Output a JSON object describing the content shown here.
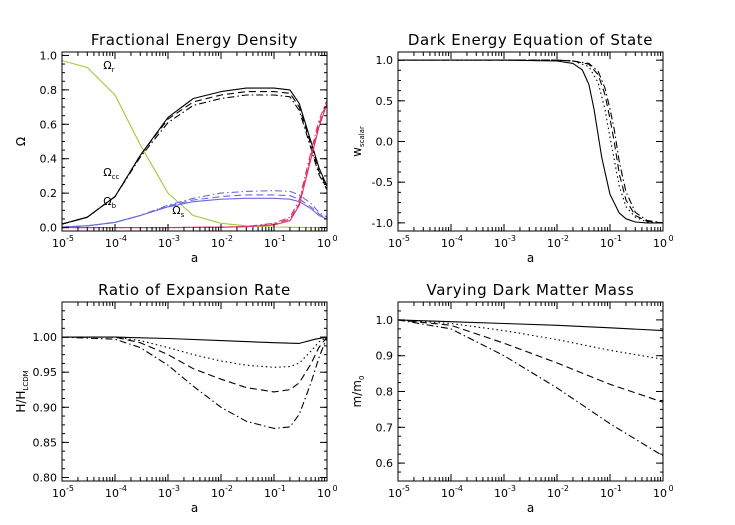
{
  "chart_data": [
    {
      "type": "line",
      "title": "Fractional Energy Density",
      "xlabel": "a",
      "ylabel": "Ω",
      "x_scale": "log",
      "xlim": [
        1e-05,
        1
      ],
      "ylim": [
        -0.02,
        1.02
      ],
      "x_ticks": [
        -5,
        -4,
        -3,
        -2,
        -1,
        0
      ],
      "y_ticks": [
        "0.0",
        "0.2",
        "0.4",
        "0.6",
        "0.8",
        "1.0"
      ],
      "grid": false,
      "annotations": [
        {
          "text": "Ω",
          "sub": "r",
          "x": 6e-05,
          "y": 0.92
        },
        {
          "text": "Ω",
          "sub": "cc",
          "x": 6e-05,
          "y": 0.3
        },
        {
          "text": "Ω",
          "sub": "b",
          "x": 6e-05,
          "y": 0.13
        },
        {
          "text": "Ω",
          "sub": "s",
          "x": 0.0012,
          "y": 0.08
        }
      ],
      "colors": {
        "radiation": "#9acd32",
        "cdm": "#000000",
        "baryons": "#6a6adf",
        "scalar": "#e0306a"
      },
      "series": [
        {
          "color_key": "radiation",
          "style": "solid",
          "x": [
            1e-05,
            3e-05,
            0.0001,
            0.0003,
            0.001,
            0.003,
            0.01,
            0.03,
            0.1,
            0.3,
            1
          ],
          "values": [
            0.97,
            0.93,
            0.77,
            0.48,
            0.2,
            0.07,
            0.025,
            0.01,
            0.003,
            0.001,
            0.0
          ]
        },
        {
          "color_key": "cdm",
          "style": "solid",
          "x": [
            1e-05,
            3e-05,
            0.0001,
            0.0003,
            0.001,
            0.003,
            0.01,
            0.03,
            0.1,
            0.2,
            0.3,
            0.5,
            0.7,
            1
          ],
          "values": [
            0.02,
            0.06,
            0.18,
            0.42,
            0.64,
            0.75,
            0.79,
            0.81,
            0.81,
            0.8,
            0.72,
            0.5,
            0.35,
            0.24
          ]
        },
        {
          "color_key": "cdm",
          "style": "dash",
          "x": [
            1e-05,
            3e-05,
            0.0001,
            0.0003,
            0.001,
            0.003,
            0.01,
            0.03,
            0.1,
            0.2,
            0.3,
            0.5,
            0.7,
            1
          ],
          "values": [
            0.02,
            0.06,
            0.18,
            0.42,
            0.63,
            0.73,
            0.77,
            0.79,
            0.79,
            0.78,
            0.7,
            0.48,
            0.33,
            0.23
          ]
        },
        {
          "color_key": "cdm",
          "style": "dashdot",
          "x": [
            1e-05,
            3e-05,
            0.0001,
            0.0003,
            0.001,
            0.003,
            0.01,
            0.03,
            0.1,
            0.2,
            0.3,
            0.5,
            0.7,
            1
          ],
          "values": [
            0.02,
            0.06,
            0.18,
            0.41,
            0.61,
            0.71,
            0.75,
            0.77,
            0.77,
            0.76,
            0.68,
            0.46,
            0.31,
            0.22
          ]
        },
        {
          "color_key": "baryons",
          "style": "solid",
          "x": [
            1e-05,
            3e-05,
            0.0001,
            0.0003,
            0.001,
            0.003,
            0.01,
            0.03,
            0.1,
            0.2,
            0.3,
            0.5,
            0.7,
            1
          ],
          "values": [
            0.003,
            0.01,
            0.03,
            0.07,
            0.12,
            0.15,
            0.165,
            0.17,
            0.17,
            0.165,
            0.15,
            0.11,
            0.07,
            0.05
          ]
        },
        {
          "color_key": "baryons",
          "style": "dash",
          "x": [
            1e-05,
            3e-05,
            0.0001,
            0.0003,
            0.001,
            0.003,
            0.01,
            0.03,
            0.1,
            0.2,
            0.3,
            0.5,
            0.7,
            1
          ],
          "values": [
            0.003,
            0.01,
            0.03,
            0.07,
            0.125,
            0.16,
            0.18,
            0.19,
            0.19,
            0.185,
            0.165,
            0.12,
            0.08,
            0.05
          ]
        },
        {
          "color_key": "baryons",
          "style": "dashdot",
          "x": [
            1e-05,
            3e-05,
            0.0001,
            0.0003,
            0.001,
            0.003,
            0.01,
            0.03,
            0.1,
            0.2,
            0.3,
            0.5,
            0.7,
            1
          ],
          "values": [
            0.003,
            0.01,
            0.03,
            0.07,
            0.13,
            0.17,
            0.2,
            0.21,
            0.215,
            0.21,
            0.19,
            0.14,
            0.09,
            0.06
          ]
        },
        {
          "color_key": "scalar",
          "style": "solid",
          "x": [
            1e-05,
            0.001,
            0.01,
            0.03,
            0.1,
            0.2,
            0.3,
            0.5,
            0.7,
            1
          ],
          "values": [
            0.0,
            0.0,
            0.002,
            0.005,
            0.015,
            0.04,
            0.13,
            0.4,
            0.58,
            0.72
          ]
        },
        {
          "color_key": "scalar",
          "style": "dash",
          "x": [
            1e-05,
            0.001,
            0.01,
            0.03,
            0.1,
            0.2,
            0.3,
            0.5,
            0.7,
            1
          ],
          "values": [
            0.0,
            0.0,
            0.002,
            0.005,
            0.02,
            0.05,
            0.14,
            0.42,
            0.6,
            0.73
          ]
        },
        {
          "color_key": "scalar",
          "style": "dashdot",
          "x": [
            1e-05,
            0.001,
            0.01,
            0.03,
            0.1,
            0.2,
            0.3,
            0.5,
            0.7,
            1
          ],
          "values": [
            0.0,
            0.0,
            0.002,
            0.006,
            0.025,
            0.06,
            0.16,
            0.44,
            0.62,
            0.74
          ]
        }
      ]
    },
    {
      "type": "line",
      "title": "Dark Energy Equation of State",
      "xlabel": "a",
      "ylabel": "w",
      "ylabel_sub": "scalar",
      "x_scale": "log",
      "xlim": [
        1e-05,
        1
      ],
      "ylim": [
        -1.1,
        1.1
      ],
      "x_ticks": [
        -5,
        -4,
        -3,
        -2,
        -1,
        0
      ],
      "y_ticks": [
        "-1.0",
        "-0.5",
        "0.0",
        "0.5",
        "1.0"
      ],
      "grid": false,
      "colors": {
        "line": "#000000"
      },
      "series": [
        {
          "style": "solid",
          "x": [
            1e-05,
            0.001,
            0.01,
            0.02,
            0.03,
            0.04,
            0.05,
            0.07,
            0.1,
            0.15,
            0.2,
            0.3,
            0.5,
            1
          ],
          "values": [
            1.0,
            1.0,
            0.99,
            0.96,
            0.88,
            0.7,
            0.4,
            -0.2,
            -0.65,
            -0.88,
            -0.95,
            -0.99,
            -1.0,
            -1.0
          ]
        },
        {
          "style": "dot",
          "x": [
            1e-05,
            0.001,
            0.01,
            0.02,
            0.04,
            0.06,
            0.08,
            0.1,
            0.15,
            0.2,
            0.3,
            0.5,
            1
          ],
          "values": [
            1.0,
            1.0,
            1.0,
            0.99,
            0.92,
            0.72,
            0.4,
            0.05,
            -0.55,
            -0.8,
            -0.93,
            -0.99,
            -1.0
          ]
        },
        {
          "style": "dash",
          "x": [
            1e-05,
            0.001,
            0.01,
            0.02,
            0.04,
            0.06,
            0.08,
            0.1,
            0.12,
            0.15,
            0.2,
            0.3,
            0.5,
            1
          ],
          "values": [
            1.0,
            1.0,
            1.0,
            0.99,
            0.95,
            0.82,
            0.58,
            0.28,
            0.0,
            -0.4,
            -0.72,
            -0.91,
            -0.98,
            -1.0
          ]
        },
        {
          "style": "dashdot",
          "x": [
            1e-05,
            0.001,
            0.01,
            0.02,
            0.04,
            0.06,
            0.08,
            0.1,
            0.12,
            0.15,
            0.2,
            0.3,
            0.5,
            1
          ],
          "values": [
            1.0,
            1.0,
            1.0,
            0.99,
            0.96,
            0.86,
            0.66,
            0.4,
            0.15,
            -0.25,
            -0.62,
            -0.87,
            -0.97,
            -1.0
          ]
        }
      ]
    },
    {
      "type": "line",
      "title": "Ratio of Expansion Rate",
      "xlabel": "a",
      "ylabel": "H/H",
      "ylabel_sub": "LCDM",
      "x_scale": "log",
      "xlim": [
        1e-05,
        1
      ],
      "ylim": [
        0.795,
        1.05
      ],
      "x_ticks": [
        -5,
        -4,
        -3,
        -2,
        -1,
        0
      ],
      "y_ticks": [
        "0.80",
        "0.85",
        "0.90",
        "0.95",
        "1.00"
      ],
      "grid": false,
      "colors": {
        "line": "#000000"
      },
      "series": [
        {
          "style": "solid",
          "x": [
            1e-05,
            0.0001,
            0.001,
            0.01,
            0.1,
            0.3,
            0.6,
            1
          ],
          "values": [
            1.0,
            1.0,
            0.998,
            0.995,
            0.992,
            0.991,
            0.997,
            1.0
          ]
        },
        {
          "style": "dot",
          "x": [
            1e-05,
            0.0001,
            0.0003,
            0.001,
            0.003,
            0.01,
            0.03,
            0.1,
            0.2,
            0.3,
            0.5,
            0.7,
            1
          ],
          "values": [
            1.0,
            1.0,
            0.995,
            0.985,
            0.975,
            0.966,
            0.96,
            0.957,
            0.958,
            0.963,
            0.98,
            0.993,
            1.0
          ]
        },
        {
          "style": "dash",
          "x": [
            1e-05,
            0.0001,
            0.0003,
            0.001,
            0.003,
            0.01,
            0.03,
            0.1,
            0.2,
            0.3,
            0.5,
            0.7,
            1
          ],
          "values": [
            1.0,
            1.0,
            0.992,
            0.975,
            0.955,
            0.94,
            0.928,
            0.922,
            0.925,
            0.935,
            0.962,
            0.985,
            1.0
          ]
        },
        {
          "style": "dashdot",
          "x": [
            1e-05,
            0.0001,
            0.0003,
            0.001,
            0.003,
            0.01,
            0.03,
            0.1,
            0.2,
            0.3,
            0.5,
            0.7,
            1
          ],
          "values": [
            1.0,
            0.997,
            0.985,
            0.96,
            0.93,
            0.9,
            0.88,
            0.87,
            0.872,
            0.89,
            0.935,
            0.97,
            1.0
          ]
        }
      ]
    },
    {
      "type": "line",
      "title": "Varying Dark Matter Mass",
      "xlabel": "a",
      "ylabel": "m/m",
      "ylabel_sub": "0",
      "x_scale": "log",
      "xlim": [
        1e-05,
        1
      ],
      "ylim": [
        0.55,
        1.05
      ],
      "x_ticks": [
        -5,
        -4,
        -3,
        -2,
        -1,
        0
      ],
      "y_ticks": [
        "0.6",
        "0.7",
        "0.8",
        "0.9",
        "1.0"
      ],
      "grid": false,
      "colors": {
        "line": "#000000"
      },
      "series": [
        {
          "style": "solid",
          "x": [
            1e-05,
            0.0001,
            0.001,
            0.01,
            0.1,
            1
          ],
          "values": [
            1.0,
            0.995,
            0.99,
            0.985,
            0.978,
            0.97
          ]
        },
        {
          "style": "dot",
          "x": [
            1e-05,
            0.0001,
            0.001,
            0.01,
            0.1,
            1
          ],
          "values": [
            1.0,
            0.99,
            0.97,
            0.945,
            0.915,
            0.89
          ]
        },
        {
          "style": "dash",
          "x": [
            1e-05,
            0.0001,
            0.001,
            0.01,
            0.1,
            1
          ],
          "values": [
            1.0,
            0.985,
            0.935,
            0.88,
            0.82,
            0.77
          ]
        },
        {
          "style": "dashdot",
          "x": [
            1e-05,
            0.0001,
            0.001,
            0.01,
            0.1,
            1
          ],
          "values": [
            1.0,
            0.975,
            0.9,
            0.81,
            0.71,
            0.62
          ]
        }
      ]
    }
  ]
}
